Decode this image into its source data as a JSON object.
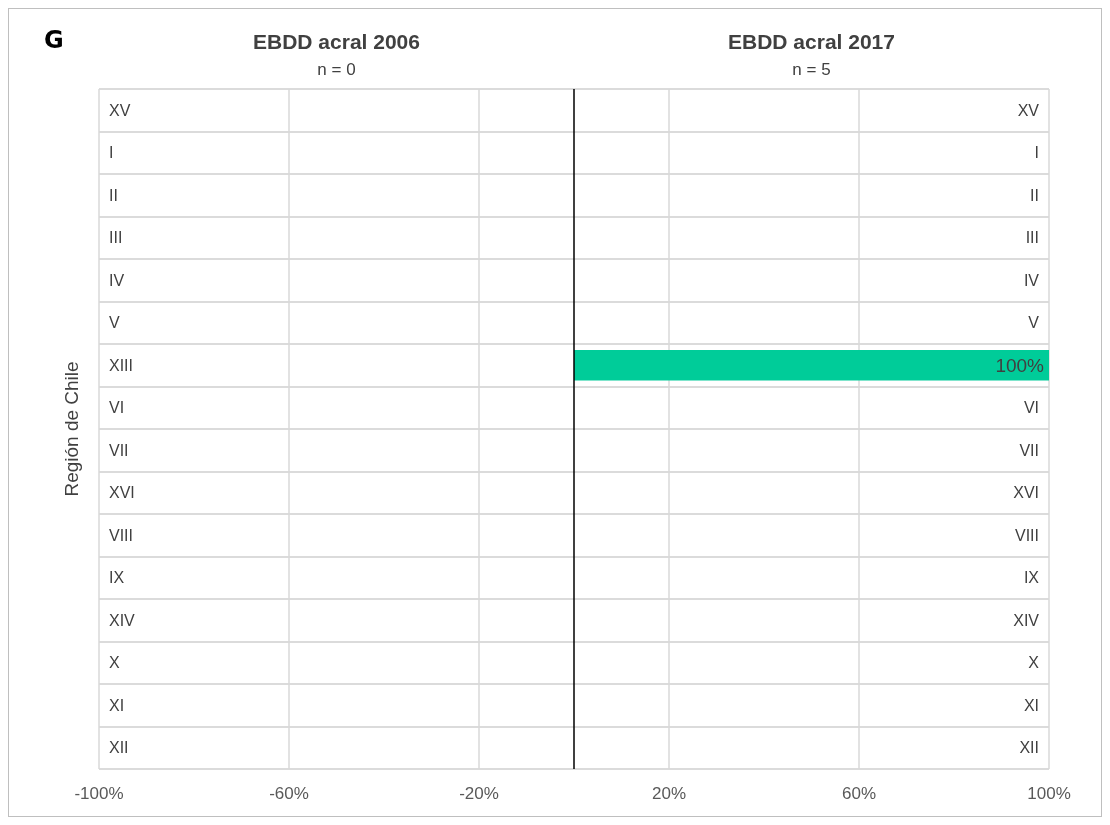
{
  "chart_data": {
    "type": "bar",
    "orientation": "horizontal",
    "title": "G",
    "ylabel": "Región de Chile",
    "categories": [
      "XV",
      "I",
      "II",
      "III",
      "IV",
      "V",
      "XIII",
      "VI",
      "VII",
      "XVI",
      "VIII",
      "IX",
      "XIV",
      "X",
      "XI",
      "XII"
    ],
    "series": [
      {
        "name": "EBDD acral 2006",
        "values": [
          0,
          0,
          0,
          0,
          0,
          0,
          0,
          0,
          0,
          0,
          0,
          0,
          0,
          0,
          0,
          0
        ]
      },
      {
        "name": "EBDD acral 2017",
        "color": "#00cc99",
        "values": [
          0,
          0,
          0,
          0,
          0,
          0,
          100,
          0,
          0,
          0,
          0,
          0,
          0,
          0,
          0,
          0
        ],
        "value_labels": [
          null,
          null,
          null,
          null,
          null,
          null,
          "100%",
          null,
          null,
          null,
          null,
          null,
          null,
          null,
          null,
          null
        ]
      }
    ],
    "annotations": [
      "n = 0",
      "n = 5"
    ],
    "xlim": [
      -100,
      100
    ],
    "xticks": [
      {
        "value": -100,
        "label": "-100%"
      },
      {
        "value": -60,
        "label": "-60%"
      },
      {
        "value": -20,
        "label": "-20%"
      },
      {
        "value": 20,
        "label": "20%"
      },
      {
        "value": 60,
        "label": "60%"
      },
      {
        "value": 100,
        "label": "100%"
      }
    ],
    "ref_lines": [
      {
        "axis": "x",
        "value": 0,
        "color": "#000000"
      }
    ],
    "grid": true
  }
}
